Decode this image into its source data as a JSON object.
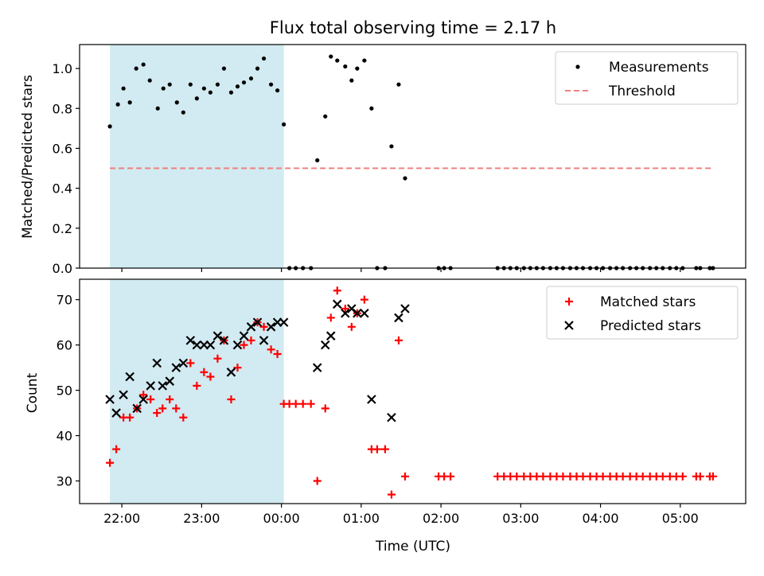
{
  "chart_data": {
    "type": "scatter",
    "title": "Flux total observing time = 2.17 h",
    "xlabel": "Time (UTC)",
    "x_tick_labels": [
      "22:00",
      "23:00",
      "00:00",
      "01:00",
      "02:00",
      "03:00",
      "04:00",
      "05:00"
    ],
    "x_ticks_h": [
      22,
      23,
      24,
      25,
      26,
      27,
      28,
      29
    ],
    "xlim_h": [
      21.47,
      29.82
    ],
    "shaded_region_h": [
      21.85,
      24.03
    ],
    "colors": {
      "shade": "#add8e6",
      "measurements": "#000000",
      "threshold": "#f08080",
      "matched": "#ff0000",
      "predicted": "#000000"
    },
    "panels": [
      {
        "id": "ratio",
        "ylabel": "Matched/Predicted stars",
        "ylim": [
          0,
          1.12
        ],
        "y_ticks": [
          "0.0",
          "0.2",
          "0.4",
          "0.6",
          "0.8",
          "1.0"
        ],
        "y_tick_values": [
          0,
          0.2,
          0.4,
          0.6,
          0.8,
          1.0
        ],
        "legend": {
          "position": "upper right",
          "entries": [
            {
              "label": "Measurements",
              "marker": "dot"
            },
            {
              "label": "Threshold",
              "marker": "dashed-line"
            }
          ]
        },
        "threshold": {
          "y": 0.5,
          "x_start_h": 21.85,
          "x_end_h": 29.4
        },
        "measurements": [
          [
            21.85,
            0.71
          ],
          [
            21.95,
            0.82
          ],
          [
            22.02,
            0.9
          ],
          [
            22.1,
            0.83
          ],
          [
            22.18,
            1.0
          ],
          [
            22.27,
            1.02
          ],
          [
            22.35,
            0.94
          ],
          [
            22.45,
            0.8
          ],
          [
            22.52,
            0.9
          ],
          [
            22.6,
            0.92
          ],
          [
            22.69,
            0.83
          ],
          [
            22.77,
            0.78
          ],
          [
            22.86,
            0.92
          ],
          [
            22.94,
            0.85
          ],
          [
            23.03,
            0.9
          ],
          [
            23.11,
            0.88
          ],
          [
            23.2,
            0.92
          ],
          [
            23.28,
            1.0
          ],
          [
            23.37,
            0.88
          ],
          [
            23.45,
            0.91
          ],
          [
            23.53,
            0.93
          ],
          [
            23.62,
            0.95
          ],
          [
            23.7,
            1.0
          ],
          [
            23.78,
            1.05
          ],
          [
            23.87,
            0.92
          ],
          [
            23.95,
            0.89
          ],
          [
            24.03,
            0.72
          ],
          [
            24.1,
            0.0
          ],
          [
            24.18,
            0.0
          ],
          [
            24.27,
            0.0
          ],
          [
            24.37,
            0.0
          ],
          [
            24.45,
            0.54
          ],
          [
            24.55,
            0.76
          ],
          [
            24.62,
            1.06
          ],
          [
            24.7,
            1.04
          ],
          [
            24.8,
            1.01
          ],
          [
            24.88,
            0.94
          ],
          [
            24.95,
            1.0
          ],
          [
            25.04,
            1.04
          ],
          [
            25.13,
            0.8
          ],
          [
            25.2,
            0.0
          ],
          [
            25.3,
            0.0
          ],
          [
            25.38,
            0.61
          ],
          [
            25.47,
            0.92
          ],
          [
            25.55,
            0.45
          ],
          [
            25.97,
            0.0
          ],
          [
            26.04,
            0.0
          ],
          [
            26.12,
            0.0
          ],
          [
            26.71,
            0.0
          ],
          [
            26.79,
            0.0
          ],
          [
            26.87,
            0.0
          ],
          [
            26.95,
            0.0
          ],
          [
            27.04,
            0.0
          ],
          [
            27.12,
            0.0
          ],
          [
            27.2,
            0.0
          ],
          [
            27.28,
            0.0
          ],
          [
            27.37,
            0.0
          ],
          [
            27.45,
            0.0
          ],
          [
            27.53,
            0.0
          ],
          [
            27.62,
            0.0
          ],
          [
            27.7,
            0.0
          ],
          [
            27.78,
            0.0
          ],
          [
            27.87,
            0.0
          ],
          [
            27.95,
            0.0
          ],
          [
            28.03,
            0.0
          ],
          [
            28.12,
            0.0
          ],
          [
            28.2,
            0.0
          ],
          [
            28.28,
            0.0
          ],
          [
            28.37,
            0.0
          ],
          [
            28.45,
            0.0
          ],
          [
            28.53,
            0.0
          ],
          [
            28.62,
            0.0
          ],
          [
            28.7,
            0.0
          ],
          [
            28.78,
            0.0
          ],
          [
            28.87,
            0.0
          ],
          [
            28.95,
            0.0
          ],
          [
            29.03,
            0.0
          ],
          [
            29.2,
            0.0
          ],
          [
            29.25,
            0.0
          ],
          [
            29.37,
            0.0
          ],
          [
            29.41,
            0.0
          ]
        ]
      },
      {
        "id": "count",
        "ylabel": "Count",
        "ylim": [
          25,
          74.5
        ],
        "y_ticks": [
          "30",
          "40",
          "50",
          "60",
          "70"
        ],
        "y_tick_values": [
          30,
          40,
          50,
          60,
          70
        ],
        "legend": {
          "position": "upper right",
          "entries": [
            {
              "label": "Matched stars",
              "marker": "plus"
            },
            {
              "label": "Predicted stars",
              "marker": "x"
            }
          ]
        },
        "series": [
          {
            "name": "Matched stars",
            "marker": "plus",
            "points": [
              [
                21.85,
                34
              ],
              [
                21.93,
                37
              ],
              [
                22.02,
                44
              ],
              [
                22.1,
                44
              ],
              [
                22.19,
                46
              ],
              [
                22.27,
                49
              ],
              [
                22.36,
                48
              ],
              [
                22.44,
                45
              ],
              [
                22.51,
                46
              ],
              [
                22.6,
                48
              ],
              [
                22.68,
                46
              ],
              [
                22.77,
                44
              ],
              [
                22.86,
                56
              ],
              [
                22.94,
                51
              ],
              [
                23.03,
                54
              ],
              [
                23.11,
                53
              ],
              [
                23.2,
                57
              ],
              [
                23.28,
                61
              ],
              [
                23.37,
                48
              ],
              [
                23.45,
                55
              ],
              [
                23.53,
                60
              ],
              [
                23.62,
                61
              ],
              [
                23.7,
                65
              ],
              [
                23.78,
                64
              ],
              [
                23.87,
                59
              ],
              [
                23.95,
                58
              ],
              [
                24.03,
                47
              ],
              [
                24.1,
                47
              ],
              [
                24.18,
                47
              ],
              [
                24.27,
                47
              ],
              [
                24.37,
                47
              ],
              [
                24.45,
                30
              ],
              [
                24.55,
                46
              ],
              [
                24.62,
                66
              ],
              [
                24.7,
                72
              ],
              [
                24.8,
                68
              ],
              [
                24.88,
                64
              ],
              [
                24.95,
                67
              ],
              [
                25.04,
                70
              ],
              [
                25.13,
                37
              ],
              [
                25.2,
                37
              ],
              [
                25.3,
                37
              ],
              [
                25.38,
                27
              ],
              [
                25.47,
                61
              ],
              [
                25.55,
                31
              ],
              [
                25.97,
                31
              ],
              [
                26.04,
                31
              ],
              [
                26.12,
                31
              ],
              [
                26.71,
                31
              ],
              [
                26.79,
                31
              ],
              [
                26.87,
                31
              ],
              [
                26.95,
                31
              ],
              [
                27.04,
                31
              ],
              [
                27.12,
                31
              ],
              [
                27.2,
                31
              ],
              [
                27.28,
                31
              ],
              [
                27.37,
                31
              ],
              [
                27.45,
                31
              ],
              [
                27.53,
                31
              ],
              [
                27.62,
                31
              ],
              [
                27.7,
                31
              ],
              [
                27.78,
                31
              ],
              [
                27.87,
                31
              ],
              [
                27.95,
                31
              ],
              [
                28.03,
                31
              ],
              [
                28.12,
                31
              ],
              [
                28.2,
                31
              ],
              [
                28.28,
                31
              ],
              [
                28.37,
                31
              ],
              [
                28.45,
                31
              ],
              [
                28.53,
                31
              ],
              [
                28.62,
                31
              ],
              [
                28.7,
                31
              ],
              [
                28.78,
                31
              ],
              [
                28.87,
                31
              ],
              [
                28.95,
                31
              ],
              [
                29.03,
                31
              ],
              [
                29.2,
                31
              ],
              [
                29.25,
                31
              ],
              [
                29.37,
                31
              ],
              [
                29.41,
                31
              ]
            ]
          },
          {
            "name": "Predicted stars",
            "marker": "x",
            "points": [
              [
                21.85,
                48
              ],
              [
                21.93,
                45
              ],
              [
                22.02,
                49
              ],
              [
                22.1,
                53
              ],
              [
                22.19,
                46
              ],
              [
                22.27,
                48
              ],
              [
                22.36,
                51
              ],
              [
                22.44,
                56
              ],
              [
                22.51,
                51
              ],
              [
                22.6,
                52
              ],
              [
                22.68,
                55
              ],
              [
                22.77,
                56
              ],
              [
                22.86,
                61
              ],
              [
                22.94,
                60
              ],
              [
                23.03,
                60
              ],
              [
                23.11,
                60
              ],
              [
                23.2,
                62
              ],
              [
                23.28,
                61
              ],
              [
                23.37,
                54
              ],
              [
                23.45,
                60
              ],
              [
                23.53,
                62
              ],
              [
                23.62,
                64
              ],
              [
                23.7,
                65
              ],
              [
                23.78,
                61
              ],
              [
                23.87,
                64
              ],
              [
                23.95,
                65
              ],
              [
                24.03,
                65
              ],
              [
                24.45,
                55
              ],
              [
                24.55,
                60
              ],
              [
                24.62,
                62
              ],
              [
                24.7,
                69
              ],
              [
                24.8,
                67
              ],
              [
                24.88,
                68
              ],
              [
                24.95,
                67
              ],
              [
                25.04,
                67
              ],
              [
                25.13,
                48
              ],
              [
                25.38,
                44
              ],
              [
                25.47,
                66
              ],
              [
                25.55,
                68
              ]
            ]
          }
        ]
      }
    ]
  }
}
